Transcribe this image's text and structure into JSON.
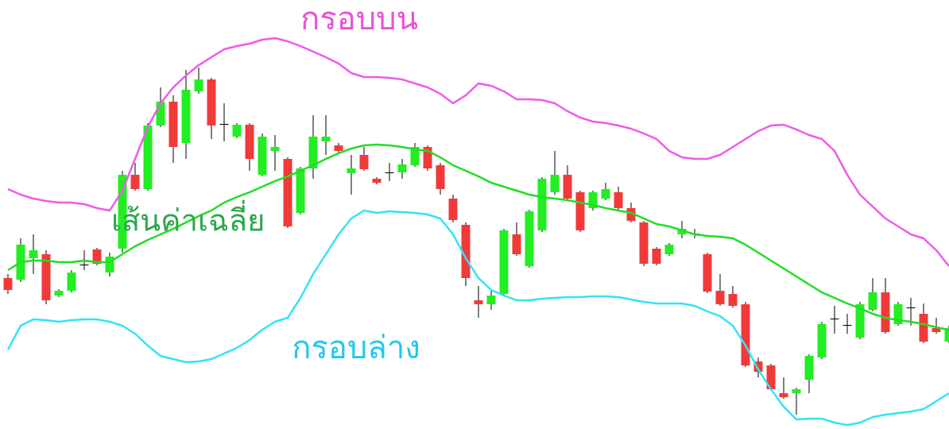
{
  "chart_data": {
    "type": "candlestick",
    "ylim": [
      0,
      540
    ],
    "up_color": "#22ee22",
    "down_color": "#f03a3a",
    "wick_color": "#000000",
    "ohlc": {
      "open": [
        190,
        188,
        215,
        220,
        168,
        174,
        206,
        226,
        197,
        227,
        320,
        302,
        382,
        412,
        360,
        425,
        440,
        383,
        368,
        383,
        320,
        350,
        340,
        272,
        328,
        362,
        357,
        322,
        345,
        315,
        322,
        323,
        332,
        355,
        332,
        290,
        257,
        162,
        157,
        170,
        245,
        205,
        250,
        298,
        320,
        298,
        278,
        290,
        298,
        278,
        260,
        227,
        220,
        245,
        245,
        220,
        174,
        170,
        157,
        85,
        80,
        45,
        45,
        62,
        90,
        138,
        130,
        115,
        150,
        172,
        132,
        152,
        145,
        127,
        110
      ],
      "high": [
        195,
        240,
        245,
        225,
        176,
        200,
        225,
        228,
        222,
        325,
        335,
        385,
        430,
        420,
        452,
        455,
        442,
        410,
        385,
        385,
        372,
        370,
        342,
        330,
        395,
        395,
        360,
        345,
        355,
        317,
        335,
        340,
        360,
        357,
        335,
        295,
        260,
        180,
        175,
        252,
        260,
        276,
        317,
        350,
        332,
        300,
        300,
        310,
        305,
        285,
        262,
        229,
        234,
        262,
        252,
        222,
        195,
        180,
        160,
        90,
        82,
        65,
        52,
        94,
        135,
        155,
        145,
        160,
        190,
        190,
        160,
        165,
        158,
        140,
        130
      ],
      "low": [
        170,
        185,
        195,
        157,
        166,
        172,
        200,
        206,
        192,
        222,
        300,
        300,
        380,
        335,
        340,
        422,
        365,
        362,
        366,
        325,
        318,
        325,
        253,
        270,
        315,
        345,
        347,
        295,
        325,
        308,
        312,
        315,
        330,
        325,
        295,
        260,
        180,
        140,
        150,
        168,
        218,
        203,
        248,
        295,
        288,
        248,
        275,
        288,
        275,
        260,
        205,
        206,
        218,
        240,
        240,
        171,
        155,
        153,
        78,
        65,
        48,
        38,
        18,
        45,
        88,
        120,
        120,
        113,
        148,
        120,
        130,
        130,
        108,
        120,
        108
      ],
      "close": [
        175,
        232,
        225,
        162,
        174,
        197,
        207,
        208,
        217,
        320,
        302,
        382,
        412,
        355,
        427,
        440,
        382,
        384,
        383,
        340,
        368,
        355,
        255,
        328,
        368,
        368,
        350,
        328,
        327,
        310,
        323,
        333,
        355,
        328,
        302,
        263,
        190,
        157,
        168,
        250,
        220,
        274,
        315,
        320,
        290,
        250,
        298,
        302,
        278,
        262,
        208,
        208,
        232,
        252,
        246,
        173,
        157,
        155,
        80,
        72,
        50,
        40,
        50,
        92,
        132,
        139,
        131,
        157,
        172,
        122,
        157,
        153,
        110,
        122,
        127
      ]
    },
    "series": [
      {
        "name": "กรอบบน",
        "color": "#ee5ce8",
        "label_color": "#ee4fd8",
        "values": [
          302,
          295,
          290,
          287,
          285,
          285,
          283,
          278,
          275,
          300,
          340,
          380,
          410,
          430,
          445,
          458,
          468,
          478,
          482,
          485,
          490,
          492,
          488,
          482,
          475,
          468,
          460,
          448,
          443,
          443,
          442,
          440,
          435,
          430,
          422,
          410,
          420,
          435,
          432,
          425,
          415,
          415,
          414,
          410,
          400,
          392,
          387,
          385,
          382,
          378,
          372,
          365,
          350,
          342,
          340,
          340,
          345,
          355,
          365,
          375,
          382,
          383,
          377,
          370,
          365,
          350,
          320,
          295,
          280,
          265,
          255,
          245,
          240,
          225,
          205
        ]
      },
      {
        "name": "เส้นค่าเฉลี่ย",
        "color": "#22dd22",
        "label_color": "#2aa84a",
        "values": [
          200,
          210,
          212,
          212,
          210,
          210,
          212,
          210,
          210,
          220,
          230,
          238,
          245,
          252,
          260,
          268,
          275,
          285,
          292,
          298,
          305,
          312,
          318,
          325,
          332,
          340,
          347,
          353,
          357,
          358,
          357,
          355,
          352,
          350,
          342,
          332,
          325,
          318,
          310,
          305,
          300,
          295,
          292,
          290,
          288,
          285,
          282,
          278,
          275,
          272,
          265,
          258,
          255,
          250,
          245,
          243,
          242,
          240,
          232,
          222,
          212,
          202,
          192,
          182,
          172,
          165,
          158,
          152,
          145,
          140,
          137,
          135,
          132,
          128,
          125
        ]
      },
      {
        "name": "กรอบล่าง",
        "color": "#33e4f4",
        "label_color": "#22c8ec",
        "values": [
          100,
          130,
          138,
          137,
          135,
          137,
          138,
          138,
          135,
          130,
          120,
          105,
          92,
          88,
          84,
          85,
          88,
          95,
          102,
          112,
          125,
          135,
          140,
          165,
          195,
          220,
          245,
          265,
          275,
          272,
          274,
          273,
          272,
          270,
          265,
          245,
          215,
          190,
          175,
          168,
          162,
          162,
          164,
          165,
          166,
          166,
          167,
          167,
          166,
          163,
          160,
          158,
          158,
          158,
          155,
          148,
          142,
          130,
          105,
          75,
          50,
          28,
          12,
          13,
          13,
          8,
          5,
          8,
          15,
          18,
          20,
          22,
          25,
          35,
          45
        ]
      }
    ]
  }
}
